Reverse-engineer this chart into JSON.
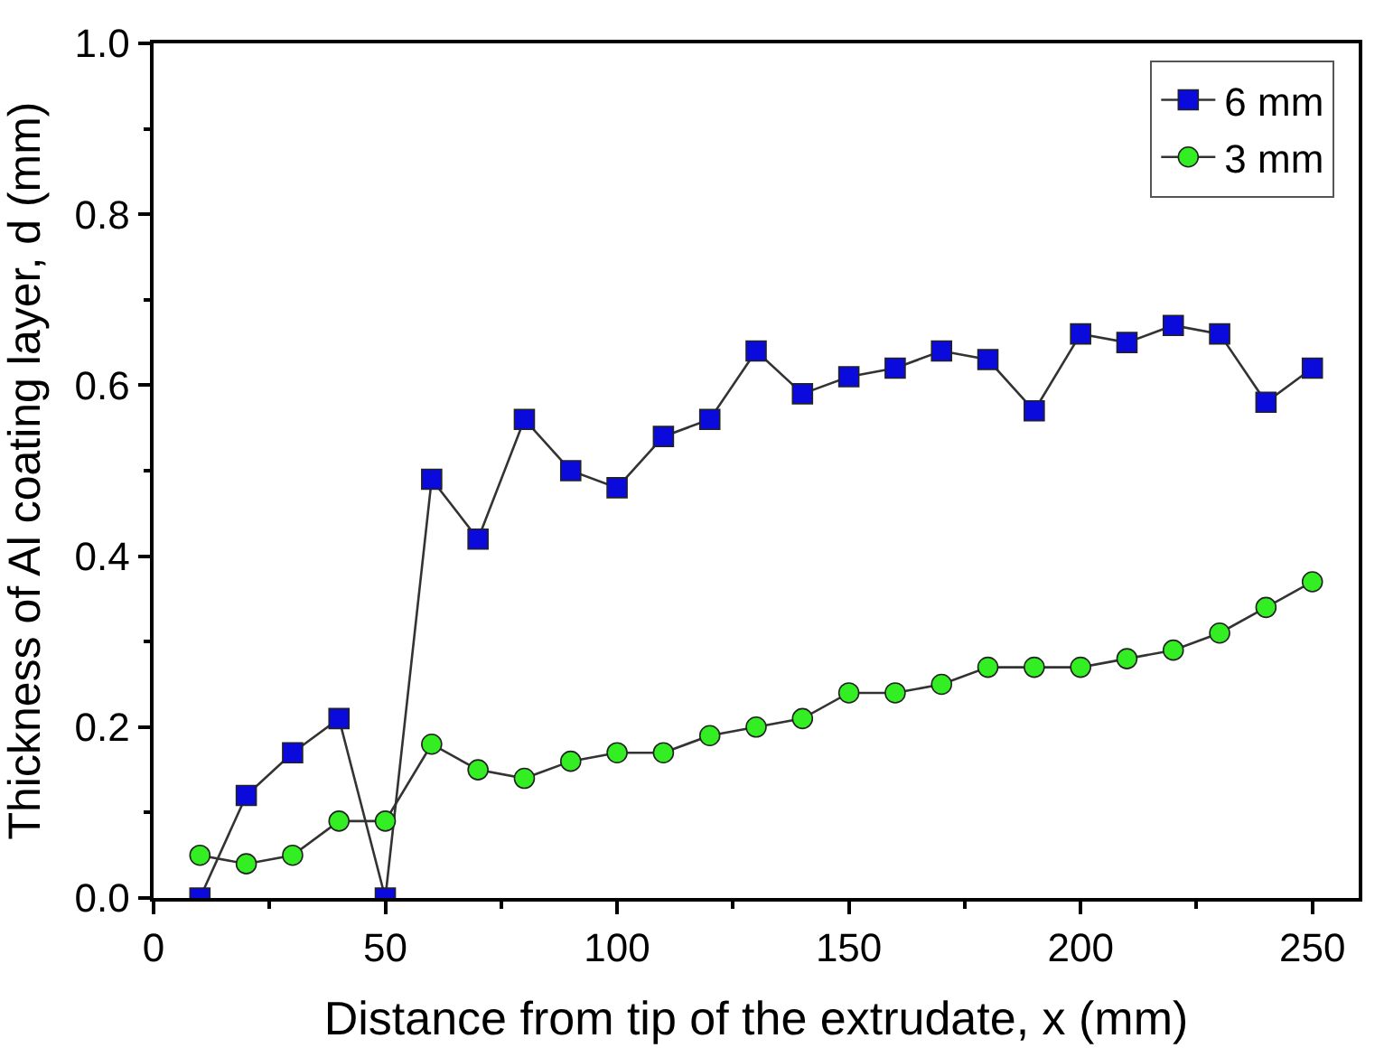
{
  "chart_data": {
    "type": "line",
    "xlabel": "Distance from tip of the extrudate, x (mm)",
    "ylabel": "Thickness of Al coating layer, d (mm)",
    "x": [
      10,
      20,
      30,
      40,
      50,
      60,
      70,
      80,
      90,
      100,
      110,
      120,
      130,
      140,
      150,
      160,
      170,
      180,
      190,
      200,
      210,
      220,
      230,
      240,
      250
    ],
    "series": [
      {
        "name": "6 mm",
        "color": "#0a0adc",
        "marker": "square",
        "values": [
          0.0,
          0.12,
          0.17,
          0.21,
          0.0,
          0.49,
          0.42,
          0.56,
          0.5,
          0.48,
          0.54,
          0.56,
          0.64,
          0.59,
          0.61,
          0.62,
          0.64,
          0.63,
          0.57,
          0.66,
          0.65,
          0.67,
          0.66,
          0.58,
          0.62
        ]
      },
      {
        "name": "3 mm",
        "color": "#33ee22",
        "marker": "circle",
        "values": [
          0.05,
          0.04,
          0.05,
          0.09,
          0.09,
          0.18,
          0.15,
          0.14,
          0.16,
          0.17,
          0.17,
          0.19,
          0.2,
          0.21,
          0.24,
          0.24,
          0.25,
          0.27,
          0.27,
          0.27,
          0.28,
          0.29,
          0.31,
          0.34,
          0.37
        ]
      }
    ],
    "xlim": [
      0,
      260
    ],
    "xticks": [
      0,
      50,
      100,
      150,
      200,
      250
    ],
    "ylim": [
      0,
      1.0
    ],
    "yticks": [
      {
        "value": 0,
        "label": "0.0"
      },
      0.2,
      0.4,
      0.6,
      0.8,
      {
        "value": 1.0,
        "label": "1.0"
      }
    ],
    "legend": "top right",
    "line_style": "solid"
  }
}
